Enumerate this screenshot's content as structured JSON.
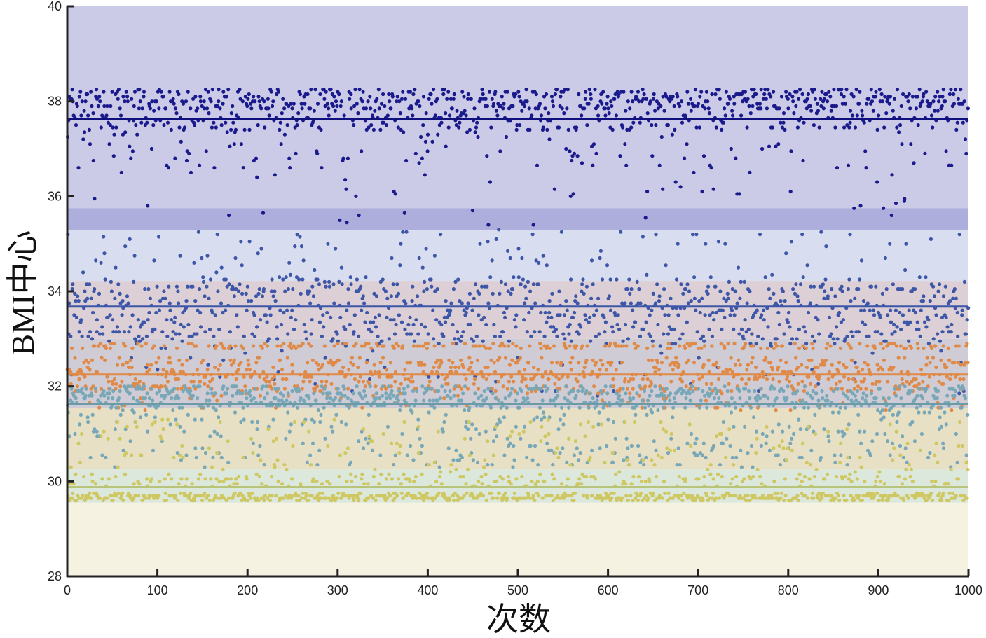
{
  "chart_data": {
    "type": "scatter",
    "title": "",
    "xlabel": "次数",
    "ylabel": "BMI中心",
    "xlim": [
      0,
      1000
    ],
    "ylim": [
      28,
      40
    ],
    "x_ticks": [
      0,
      100,
      200,
      300,
      400,
      500,
      600,
      700,
      800,
      900,
      1000
    ],
    "y_ticks": [
      28,
      30,
      32,
      34,
      36,
      38,
      40
    ],
    "grid": false,
    "legend": "none",
    "bands": [
      {
        "y_from": 35.75,
        "y_to": 40.0,
        "color": "#cbcbe8"
      },
      {
        "y_from": 35.28,
        "y_to": 35.75,
        "color": "#aeaedc"
      },
      {
        "y_from": 34.22,
        "y_to": 35.28,
        "color": "#d8def0"
      },
      {
        "y_from": 33.0,
        "y_to": 34.22,
        "color": "#dcd0d6"
      },
      {
        "y_from": 31.55,
        "y_to": 33.0,
        "color": "#d0ccd6"
      },
      {
        "y_from": 30.25,
        "y_to": 31.55,
        "color": "#e8e0c4"
      },
      {
        "y_from": 29.55,
        "y_to": 30.25,
        "color": "#dce8dc"
      },
      {
        "y_from": 28.0,
        "y_to": 29.55,
        "color": "#f5f2e2"
      }
    ],
    "series": [
      {
        "color": "#1a1a8c",
        "center": 37.62,
        "top": 38.3,
        "spread_low": 35.4,
        "cluster_high": 38.0,
        "points": 1000
      },
      {
        "color": "#3d56a8",
        "center": 33.68,
        "top": 34.2,
        "spread_low": 31.8,
        "spread_high": 35.3,
        "points": 1000
      },
      {
        "color": "#e08a48",
        "center": 32.25,
        "top": 32.9,
        "spread_low": 31.5,
        "points": 1000
      },
      {
        "color": "#78a8b8",
        "center": 31.62,
        "top": 32.0,
        "spread_low": 30.3,
        "points": 1000
      },
      {
        "color": "#cfc862",
        "center": 29.88,
        "top": 31.3,
        "spread_low": 29.55,
        "points": 1000
      }
    ],
    "center_lines": [
      {
        "value": 37.62,
        "color": "#10107e"
      },
      {
        "value": 33.68,
        "color": "#3d56a8"
      },
      {
        "value": 32.25,
        "color": "#e08a48"
      },
      {
        "value": 31.62,
        "color": "#6c9ba8"
      },
      {
        "value": 29.88,
        "color": "#b8c47a"
      }
    ]
  }
}
